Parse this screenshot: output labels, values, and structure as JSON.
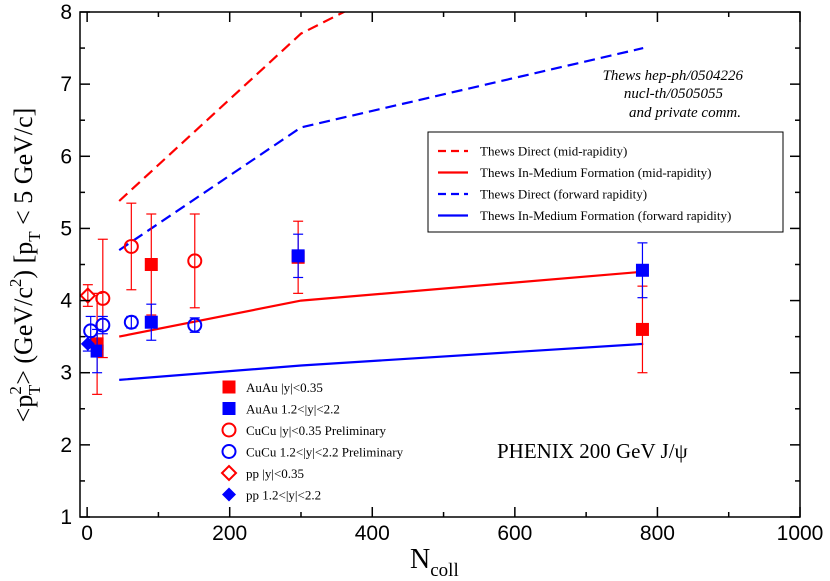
{
  "chart_data": {
    "type": "scatter",
    "x_axis": {
      "label": "N",
      "label_sub": "coll",
      "range": [
        -10,
        1000
      ],
      "ticks": [
        0,
        200,
        400,
        600,
        800,
        1000
      ]
    },
    "y_axis": {
      "label": "<p²> (GeV/c²) [p < 5 GeV/c]",
      "label_parts": {
        "open": "<p",
        "sup1": "2",
        "sub1": "T",
        "mid": "> (GeV/c",
        "sup2": "2",
        "mid2": ") [p",
        "sub2": "T",
        "end": " < 5 GeV/c]"
      },
      "range": [
        1,
        8
      ],
      "ticks": [
        1,
        2,
        3,
        4,
        5,
        6,
        7,
        8
      ]
    },
    "grid": false,
    "annotation_lines": [
      "Thews hep-ph/0504226",
      "nucl-th/0505055",
      "and private comm."
    ],
    "experiment_label": "PHENIX 200 GeV   J/ψ",
    "curves": [
      {
        "name": "Thews Direct (mid-rapidity)",
        "color": "#ff0000",
        "dash": true,
        "points": [
          [
            45,
            5.38
          ],
          [
            300,
            7.7
          ],
          [
            420,
            8.3
          ]
        ]
      },
      {
        "name": "Thews In-Medium Formation (mid-rapidity)",
        "color": "#ff0000",
        "dash": false,
        "points": [
          [
            45,
            3.5
          ],
          [
            300,
            4.0
          ],
          [
            780,
            4.4
          ]
        ]
      },
      {
        "name": "Thews Direct (forward rapidity)",
        "color": "#0000ff",
        "dash": true,
        "points": [
          [
            45,
            4.7
          ],
          [
            300,
            6.4
          ],
          [
            780,
            7.5
          ]
        ]
      },
      {
        "name": "Thews In-Medium Formation (forward rapidity)",
        "color": "#0000ff",
        "dash": false,
        "points": [
          [
            45,
            2.9
          ],
          [
            300,
            3.1
          ],
          [
            780,
            3.4
          ]
        ]
      }
    ],
    "series": [
      {
        "name": "AuAu |y|<0.35",
        "marker": "square-filled",
        "color": "#ff0000",
        "points": [
          {
            "x": 14,
            "y": 3.4,
            "err": 0.7
          },
          {
            "x": 90,
            "y": 4.5,
            "err": 0.7
          },
          {
            "x": 296,
            "y": 4.6,
            "err": 0.5
          },
          {
            "x": 779,
            "y": 3.6,
            "err": 0.6
          }
        ]
      },
      {
        "name": "AuAu 1.2<|y|<2.2",
        "marker": "square-filled",
        "color": "#0000ff",
        "points": [
          {
            "x": 14,
            "y": 3.3,
            "err": 0.3
          },
          {
            "x": 90,
            "y": 3.7,
            "err": 0.25
          },
          {
            "x": 296,
            "y": 4.62,
            "err": 0.3
          },
          {
            "x": 779,
            "y": 4.42,
            "err": 0.38
          }
        ]
      },
      {
        "name": "CuCu |y|<0.35 Preliminary",
        "marker": "circle-open",
        "color": "#ff0000",
        "points": [
          {
            "x": 22,
            "y": 4.03,
            "err": 0.82
          },
          {
            "x": 62,
            "y": 4.75,
            "err": 0.6
          },
          {
            "x": 151,
            "y": 4.55,
            "err": 0.65
          }
        ]
      },
      {
        "name": "CuCu 1.2<|y|<2.2 Preliminary",
        "marker": "circle-open",
        "color": "#0000ff",
        "points": [
          {
            "x": 5,
            "y": 3.58,
            "err": 0.2
          },
          {
            "x": 22,
            "y": 3.66,
            "err": 0.12
          },
          {
            "x": 62,
            "y": 3.7,
            "err": 0.08
          },
          {
            "x": 151,
            "y": 3.66,
            "err": 0.1
          }
        ]
      },
      {
        "name": "pp |y|<0.35",
        "marker": "diamond-open",
        "color": "#ff0000",
        "points": [
          {
            "x": 1,
            "y": 4.07,
            "err": 0.15
          }
        ]
      },
      {
        "name": "pp 1.2<|y|<2.2",
        "marker": "diamond-filled",
        "color": "#0000ff",
        "points": [
          {
            "x": 1,
            "y": 3.4,
            "err": 0.1
          }
        ]
      }
    ]
  }
}
